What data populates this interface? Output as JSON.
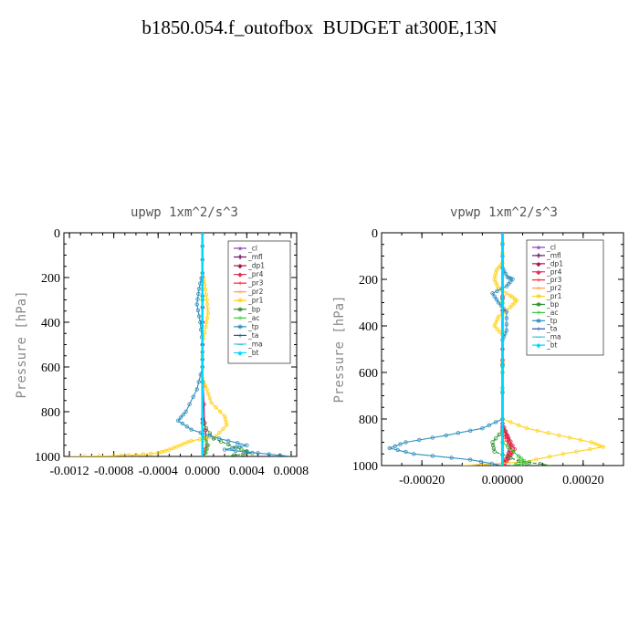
{
  "title": "b1850.054.f_outofbox  BUDGET at300E,13N",
  "chart_data": [
    {
      "type": "line",
      "title": "upwp   1xm^2/s^3",
      "xlabel": "",
      "ylabel": "Pressure [hPa]",
      "xlim": [
        -0.00125,
        0.00085
      ],
      "ylim": [
        1000,
        0
      ],
      "xticks": [
        -0.0012,
        -0.0008,
        -0.0004,
        0.0,
        0.0004,
        0.0008
      ],
      "xtick_labels": [
        "-0.0012",
        "-0.0008",
        "-0.0004",
        "0.0000",
        "0.0004",
        "0.0008"
      ],
      "yticks": [
        0,
        200,
        400,
        600,
        800,
        1000
      ],
      "ytick_labels": [
        "0",
        "200",
        "400",
        "600",
        "800",
        "1000"
      ],
      "legend_position": "top-right",
      "series": [
        {
          "name": "_cl",
          "color": "#8b3fbf",
          "points": [
            [
              0,
              0
            ],
            [
              0,
              500
            ],
            [
              0,
              1000
            ]
          ]
        },
        {
          "name": "_mfl",
          "color": "#6a1a6a",
          "points": [
            [
              0,
              0
            ],
            [
              0,
              500
            ],
            [
              0,
              1000
            ]
          ]
        },
        {
          "name": "_dp1",
          "color": "#b0154f",
          "points": [
            [
              0,
              0
            ],
            [
              0,
              600
            ],
            [
              2e-05,
              850
            ],
            [
              4e-05,
              950
            ],
            [
              1e-05,
              1000
            ]
          ]
        },
        {
          "name": "_pr4",
          "color": "#e0305a",
          "points": [
            [
              0,
              0
            ],
            [
              0,
              1000
            ]
          ]
        },
        {
          "name": "_pr3",
          "color": "#ff2020",
          "points": [
            [
              0,
              0
            ],
            [
              0,
              1000
            ]
          ]
        },
        {
          "name": "_pr2",
          "color": "#ff9a3c",
          "points": [
            [
              0,
              0
            ],
            [
              0,
              1000
            ]
          ]
        },
        {
          "name": "_pr1",
          "color": "#ffd21a",
          "points": [
            [
              0,
              0
            ],
            [
              0,
              180
            ],
            [
              2e-05,
              230
            ],
            [
              4e-05,
              300
            ],
            [
              5e-05,
              360
            ],
            [
              3e-05,
              420
            ],
            [
              0,
              500
            ],
            [
              0,
              650
            ],
            [
              4e-05,
              700
            ],
            [
              8e-05,
              760
            ],
            [
              0.0002,
              820
            ],
            [
              0.00022,
              860
            ],
            [
              0.00012,
              910
            ],
            [
              -0.0001,
              930
            ],
            [
              -0.0002,
              950
            ],
            [
              -0.0003,
              970
            ],
            [
              -0.0004,
              985
            ],
            [
              -0.0006,
              993
            ],
            [
              -0.0008,
              997
            ],
            [
              -0.0012,
              1000
            ]
          ]
        },
        {
          "name": "_bp",
          "color": "#2f8f2f",
          "points": [
            [
              0,
              0
            ],
            [
              0,
              850
            ],
            [
              0.0001,
              920
            ],
            [
              0.0003,
              960
            ],
            [
              0.00045,
              985
            ],
            [
              0.0002,
              1000
            ]
          ]
        },
        {
          "name": "_ac",
          "color": "#3cc83c",
          "points": [
            [
              0,
              0
            ],
            [
              0,
              900
            ],
            [
              5e-05,
              950
            ],
            [
              2e-05,
              1000
            ]
          ]
        },
        {
          "name": "_tp",
          "color": "#2f8fbf",
          "points": [
            [
              0,
              0
            ],
            [
              0,
              180
            ],
            [
              -3e-05,
              250
            ],
            [
              -5e-05,
              320
            ],
            [
              -2e-05,
              400
            ],
            [
              0,
              500
            ],
            [
              0,
              600
            ],
            [
              -5e-05,
              700
            ],
            [
              -0.00015,
              800
            ],
            [
              -0.00022,
              840
            ],
            [
              -0.0001,
              880
            ],
            [
              0.00015,
              920
            ],
            [
              0.0004,
              950
            ],
            [
              0.0002,
              970
            ],
            [
              0.0005,
              985
            ],
            [
              0.0008,
              1000
            ]
          ]
        },
        {
          "name": "_ta",
          "color": "#2a4fa0",
          "points": [
            [
              0,
              0
            ],
            [
              0,
              1000
            ]
          ]
        },
        {
          "name": "_ma",
          "color": "#46c8d8",
          "points": [
            [
              0,
              0
            ],
            [
              0,
              1000
            ]
          ]
        },
        {
          "name": "_bt",
          "color": "#00d8ff",
          "points": [
            [
              0,
              0
            ],
            [
              0,
              1000
            ]
          ]
        }
      ]
    },
    {
      "type": "line",
      "title": "vpwp   1xm^2/s^3",
      "xlabel": "",
      "ylabel": "Pressure [hPa]",
      "xlim": [
        -0.0003,
        0.0003
      ],
      "ylim": [
        1000,
        0
      ],
      "xticks": [
        -0.0002,
        0.0,
        0.0002
      ],
      "xtick_labels": [
        "-0.00020",
        "0.00000",
        "0.00020"
      ],
      "yticks": [
        0,
        200,
        400,
        600,
        800,
        1000
      ],
      "ytick_labels": [
        "0",
        "200",
        "400",
        "600",
        "800",
        "1000"
      ],
      "legend_position": "top-right",
      "series": [
        {
          "name": "_cl",
          "color": "#8b3fbf",
          "points": [
            [
              0,
              0
            ],
            [
              0,
              500
            ],
            [
              0,
              1000
            ]
          ]
        },
        {
          "name": "_mfl",
          "color": "#6a1a6a",
          "points": [
            [
              0,
              0
            ],
            [
              0,
              500
            ],
            [
              0,
              1000
            ]
          ]
        },
        {
          "name": "_dp1",
          "color": "#b0154f",
          "points": [
            [
              0,
              0
            ],
            [
              0,
              820
            ],
            [
              1.2e-05,
              870
            ],
            [
              2e-05,
              920
            ],
            [
              1.2e-05,
              960
            ],
            [
              0,
              1000
            ]
          ]
        },
        {
          "name": "_pr4",
          "color": "#e0305a",
          "points": [
            [
              0,
              0
            ],
            [
              0,
              840
            ],
            [
              1.5e-05,
              880
            ],
            [
              3e-05,
              930
            ],
            [
              1.5e-05,
              970
            ],
            [
              0,
              1000
            ]
          ]
        },
        {
          "name": "_pr3",
          "color": "#ff2020",
          "points": [
            [
              0,
              0
            ],
            [
              0,
              850
            ],
            [
              1e-05,
              890
            ],
            [
              2.5e-05,
              940
            ],
            [
              1e-05,
              980
            ],
            [
              0,
              1000
            ]
          ]
        },
        {
          "name": "_pr2",
          "color": "#ff9a3c",
          "points": [
            [
              0,
              0
            ],
            [
              0,
              1000
            ]
          ]
        },
        {
          "name": "_pr1",
          "color": "#ffd21a",
          "points": [
            [
              0,
              0
            ],
            [
              0,
              130
            ],
            [
              -1.5e-05,
              160
            ],
            [
              -2e-05,
              200
            ],
            [
              -1e-05,
              240
            ],
            [
              2e-05,
              270
            ],
            [
              3.5e-05,
              290
            ],
            [
              2e-05,
              320
            ],
            [
              -1e-05,
              360
            ],
            [
              -2e-05,
              400
            ],
            [
              0,
              440
            ],
            [
              0,
              800
            ],
            [
              6e-05,
              840
            ],
            [
              0.00014,
              870
            ],
            [
              0.00022,
              900
            ],
            [
              0.00025,
              920
            ],
            [
              0.00015,
              950
            ],
            [
              5e-05,
              985
            ],
            [
              -0.0001,
              1000
            ]
          ]
        },
        {
          "name": "_bp",
          "color": "#2f8f2f",
          "points": [
            [
              0,
              0
            ],
            [
              0,
              850
            ],
            [
              -2.5e-05,
              900
            ],
            [
              -2e-05,
              940
            ],
            [
              4e-05,
              980
            ],
            [
              0.00012,
              1000
            ]
          ]
        },
        {
          "name": "_ac",
          "color": "#3cc83c",
          "points": [
            [
              0,
              0
            ],
            [
              0,
              900
            ],
            [
              4e-05,
              960
            ],
            [
              6e-05,
              990
            ],
            [
              2e-05,
              1000
            ]
          ]
        },
        {
          "name": "_tp",
          "color": "#2f8fbf",
          "points": [
            [
              0,
              0
            ],
            [
              0,
              150
            ],
            [
              1.2e-05,
              190
            ],
            [
              2.5e-05,
              200
            ],
            [
              1e-05,
              230
            ],
            [
              -2.5e-05,
              260
            ],
            [
              -1e-05,
              300
            ],
            [
              1e-05,
              340
            ],
            [
              1e-05,
              420
            ],
            [
              0,
              460
            ],
            [
              0,
              800
            ],
            [
              -5e-05,
              840
            ],
            [
              -0.00014,
              870
            ],
            [
              -0.00024,
              900
            ],
            [
              -0.00028,
              925
            ],
            [
              -0.00022,
              950
            ],
            [
              -8e-05,
              975
            ],
            [
              0,
              1000
            ]
          ]
        },
        {
          "name": "_ta",
          "color": "#2a4fa0",
          "points": [
            [
              0,
              0
            ],
            [
              0,
              1000
            ]
          ]
        },
        {
          "name": "_ma",
          "color": "#46c8d8",
          "points": [
            [
              0,
              0
            ],
            [
              0,
              1000
            ]
          ]
        },
        {
          "name": "_bt",
          "color": "#00d8ff",
          "points": [
            [
              0,
              0
            ],
            [
              0,
              1000
            ]
          ]
        }
      ]
    }
  ]
}
